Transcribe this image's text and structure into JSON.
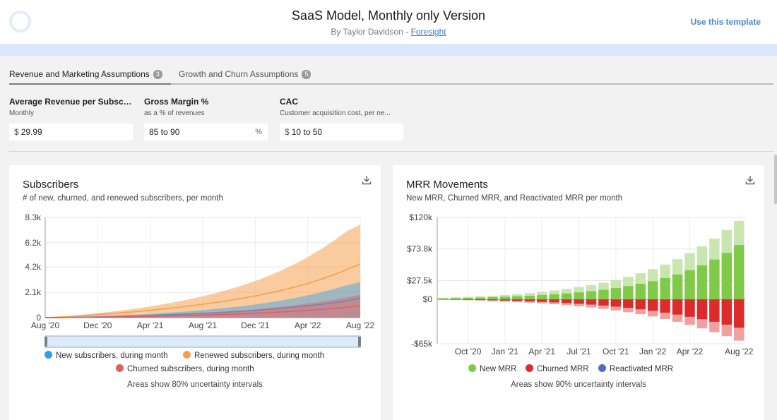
{
  "header": {
    "title": "SaaS Model, Monthly only Version",
    "byline_prefix": "By Taylor Davidson - ",
    "byline_link": "Foresight",
    "action": "Use this template"
  },
  "tabs": [
    {
      "label": "Revenue and Marketing Assumptions",
      "count": "3",
      "active": true
    },
    {
      "label": "Growth and Churn Assumptions",
      "count": "5",
      "active": false
    }
  ],
  "assumptions": [
    {
      "label": "Average Revenue per Subscri...",
      "sub": "Monthly",
      "prefix": "$",
      "value": "29.99",
      "suffix": ""
    },
    {
      "label": "Gross Margin %",
      "sub": "as a % of revenues",
      "prefix": "",
      "value": "85 to 90",
      "suffix": "%"
    },
    {
      "label": "CAC",
      "sub": "Customer acquisition cost, per ne...",
      "prefix": "$",
      "value": "10 to 50",
      "suffix": ""
    }
  ],
  "subscribers_chart": {
    "title": "Subscribers",
    "subtitle": "# of new, churned, and renewed subscribers, per month",
    "note": "Areas show 80% uncertainty intervals",
    "legend": [
      {
        "name": "New subscribers, during month",
        "color": "#2e9fe8"
      },
      {
        "name": "Renewed subscribers, during month",
        "color": "#f4a14f"
      },
      {
        "name": "Churned subscribers, during month",
        "color": "#e05f64"
      }
    ]
  },
  "mrr_chart": {
    "title": "MRR Movements",
    "subtitle": "New MRR, Churned MRR, and Reactivated MRR per month",
    "note": "Areas show 90% uncertainty intervals",
    "legend": [
      {
        "name": "New MRR",
        "color": "#7fca48"
      },
      {
        "name": "Churned MRR",
        "color": "#dd2b2b"
      },
      {
        "name": "Reactivated MRR",
        "color": "#4f6cc7"
      }
    ]
  },
  "chart_data": [
    {
      "type": "area",
      "title": "Subscribers",
      "subtitle": "# of new, churned, and renewed subscribers, per month",
      "x_tick_labels": [
        "Aug '20",
        "Dec '20",
        "Apr '21",
        "Aug '21",
        "Dec '21",
        "Apr '22",
        "Aug '22"
      ],
      "y_tick_labels": [
        "0",
        "2.1k",
        "4.2k",
        "6.2k",
        "8.3k"
      ],
      "y_ticks": [
        0,
        2100,
        4200,
        6200,
        8300
      ],
      "ylim": [
        0,
        8300
      ],
      "x_months": 24,
      "grid": true,
      "legend_position": "bottom",
      "series": [
        {
          "name": "Renewed subscribers, during month",
          "color": "#f4a14f",
          "median": [
            0,
            50,
            110,
            180,
            250,
            330,
            420,
            510,
            610,
            720,
            840,
            970,
            1110,
            1260,
            1420,
            1600,
            1800,
            2020,
            2260,
            2530,
            2830,
            3170,
            3560,
            3990,
            4450
          ],
          "upper": [
            0,
            70,
            160,
            260,
            370,
            490,
            620,
            770,
            930,
            1110,
            1310,
            1530,
            1770,
            2030,
            2330,
            2660,
            3030,
            3440,
            3910,
            4430,
            5010,
            5660,
            6380,
            7170,
            7700
          ]
        },
        {
          "name": "New subscribers, during month",
          "color": "#2e9fe8",
          "median": [
            0,
            10,
            20,
            40,
            60,
            90,
            120,
            150,
            190,
            230,
            270,
            310,
            360,
            410,
            470,
            530,
            600,
            680,
            770,
            870,
            980,
            1100,
            1240,
            1400,
            1600
          ],
          "upper": [
            0,
            20,
            40,
            70,
            110,
            150,
            200,
            250,
            310,
            380,
            450,
            530,
            620,
            720,
            830,
            950,
            1090,
            1250,
            1420,
            1620,
            1840,
            2090,
            2370,
            2680,
            2950
          ]
        },
        {
          "name": "Churned subscribers, during month",
          "color": "#e05f64",
          "median": [
            0,
            5,
            15,
            25,
            40,
            55,
            70,
            90,
            110,
            130,
            155,
            180,
            210,
            245,
            280,
            320,
            365,
            415,
            470,
            530,
            600,
            680,
            770,
            870,
            980
          ],
          "upper": [
            0,
            10,
            25,
            45,
            70,
            95,
            125,
            160,
            200,
            240,
            285,
            335,
            390,
            450,
            520,
            600,
            690,
            790,
            900,
            1020,
            1160,
            1310,
            1480,
            1670,
            1880
          ]
        }
      ]
    },
    {
      "type": "bar",
      "title": "MRR Movements",
      "subtitle": "New MRR, Churned MRR, and Reactivated MRR per month",
      "x_tick_labels": [
        "Oct '20",
        "Jan '21",
        "Apr '21",
        "Jul '21",
        "Oct '21",
        "Jan '22",
        "Apr '22",
        "Aug '22"
      ],
      "y_tick_labels": [
        "-$65k",
        "$0",
        "$27.5k",
        "$73.8k",
        "$120k"
      ],
      "y_ticks": [
        -65000,
        0,
        27500,
        73800,
        120000
      ],
      "ylim": [
        -65000,
        120000
      ],
      "grid": true,
      "legend_position": "bottom",
      "series": [
        {
          "name": "New MRR",
          "color": "#7fca48",
          "median": [
            1500,
            1800,
            2200,
            2700,
            3200,
            3800,
            4500,
            5300,
            6300,
            7400,
            8700,
            10200,
            12000,
            14000,
            16500,
            19400,
            22700,
            26600,
            31200,
            36500,
            42700,
            49900,
            58300,
            68100,
            79600
          ],
          "upper": [
            2500,
            3000,
            3700,
            4500,
            5400,
            6500,
            7800,
            9300,
            11000,
            13000,
            15300,
            18000,
            21000,
            24500,
            28400,
            33000,
            38200,
            44200,
            51000,
            58800,
            67700,
            77700,
            89000,
            101600,
            115000
          ]
        },
        {
          "name": "Churned MRR",
          "color": "#dd2b2b",
          "median": [
            -300,
            -500,
            -700,
            -1000,
            -1400,
            -1800,
            -2300,
            -2900,
            -3600,
            -4400,
            -5300,
            -6400,
            -7600,
            -9000,
            -10600,
            -12400,
            -14500,
            -16800,
            -19400,
            -22300,
            -25500,
            -29000,
            -32800,
            -37000,
            -41500
          ],
          "upper": [
            -600,
            -900,
            -1300,
            -1800,
            -2400,
            -3100,
            -3900,
            -4800,
            -5900,
            -7100,
            -8500,
            -10100,
            -11900,
            -13900,
            -16200,
            -18800,
            -21700,
            -25000,
            -28700,
            -32800,
            -37400,
            -42400,
            -47900,
            -53900,
            -60500
          ]
        }
      ]
    }
  ]
}
